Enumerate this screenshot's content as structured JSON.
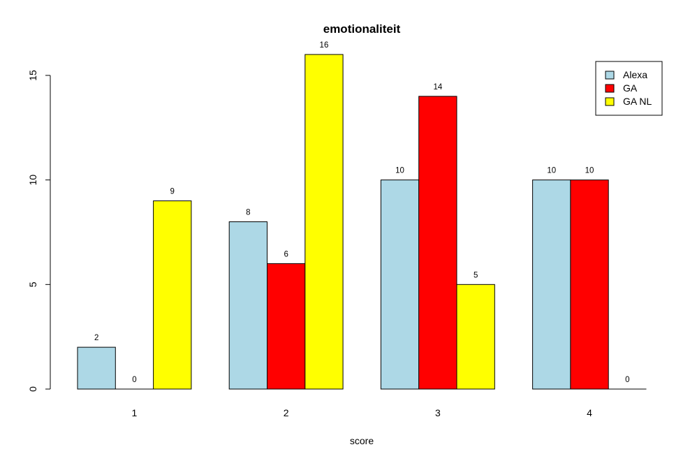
{
  "chart_data": {
    "type": "bar",
    "title": "emotionaliteit",
    "xlabel": "score",
    "ylabel": "",
    "categories": [
      "1",
      "2",
      "3",
      "4"
    ],
    "series": [
      {
        "name": "Alexa",
        "color": "#ADD8E6",
        "values": [
          2,
          8,
          10,
          10
        ]
      },
      {
        "name": "GA",
        "color": "#FF0000",
        "values": [
          0,
          6,
          14,
          10
        ]
      },
      {
        "name": "GA NL",
        "color": "#FFFF00",
        "values": [
          9,
          16,
          5,
          0
        ]
      }
    ],
    "ylim": [
      0,
      16
    ],
    "yticks": [
      0,
      5,
      10,
      15
    ],
    "grid": false,
    "legend_position": "top-right",
    "data_labels": true
  }
}
